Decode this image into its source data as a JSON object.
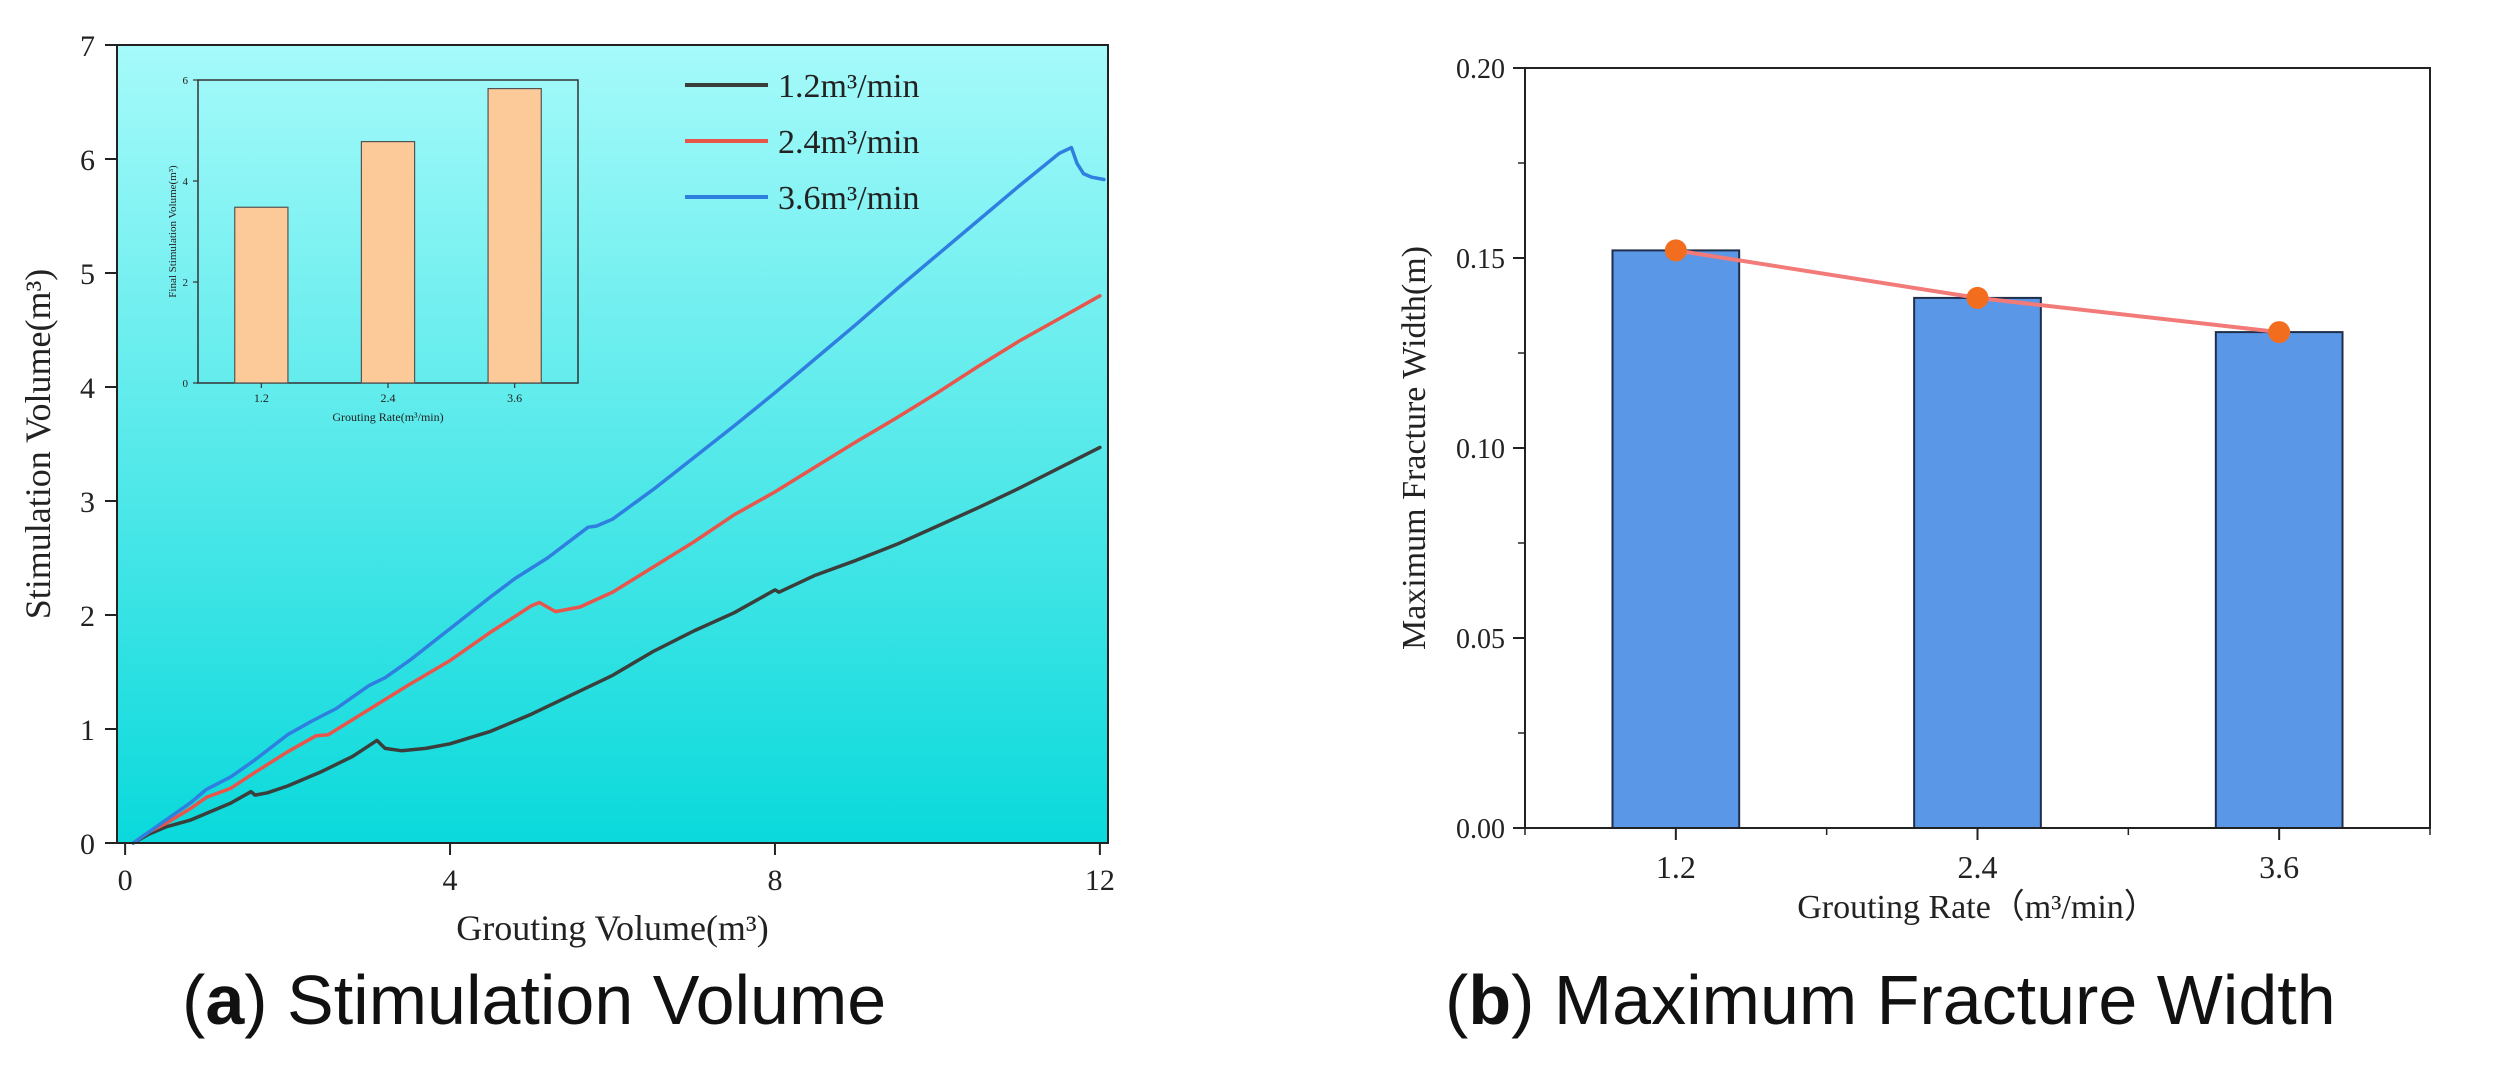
{
  "chart_data": [
    {
      "panel": "a",
      "type": "line",
      "caption_letter": "a",
      "caption_text": "Stimulation Volume",
      "xlabel": "Grouting Volume(m³)",
      "ylabel": "Stimulation Volume(m³)",
      "xlim": [
        -0.1,
        12.1
      ],
      "ylim": [
        0,
        7
      ],
      "xticks": [
        0,
        4,
        8,
        12
      ],
      "yticks": [
        0,
        1,
        2,
        3,
        4,
        5,
        6,
        7
      ],
      "xtick_labels": [
        "0",
        "4",
        "8",
        "12"
      ],
      "ytick_labels": [
        "0",
        "1",
        "2",
        "3",
        "4",
        "5",
        "6",
        "7"
      ],
      "background": "gradient cyan",
      "legend_position": "top-right",
      "series": [
        {
          "name": "1.2m³/min",
          "color": "#3a3f3c",
          "x": [
            0.1,
            0.3,
            0.5,
            0.8,
            1.0,
            1.3,
            1.55,
            1.6,
            1.75,
            2.0,
            2.4,
            2.8,
            3.1,
            3.2,
            3.4,
            3.7,
            4.0,
            4.5,
            5.0,
            5.5,
            6.0,
            6.5,
            7.0,
            7.5,
            8.0,
            8.05,
            8.5,
            9.0,
            9.5,
            10.0,
            10.5,
            11.0,
            11.5,
            12.0
          ],
          "y": [
            0.0,
            0.08,
            0.14,
            0.2,
            0.26,
            0.35,
            0.45,
            0.42,
            0.44,
            0.5,
            0.62,
            0.76,
            0.9,
            0.83,
            0.81,
            0.83,
            0.87,
            0.98,
            1.13,
            1.3,
            1.47,
            1.68,
            1.86,
            2.02,
            2.22,
            2.2,
            2.35,
            2.48,
            2.62,
            2.78,
            2.94,
            3.11,
            3.29,
            3.47
          ]
        },
        {
          "name": "2.4m³/min",
          "color": "#e8554b",
          "x": [
            0.1,
            0.3,
            0.5,
            0.8,
            1.0,
            1.3,
            1.6,
            2.0,
            2.35,
            2.5,
            3.0,
            3.5,
            4.0,
            4.5,
            5.0,
            5.1,
            5.3,
            5.6,
            6.0,
            6.5,
            7.0,
            7.5,
            8.0,
            8.5,
            9.0,
            9.5,
            10.0,
            10.5,
            11.0,
            11.5,
            12.0
          ],
          "y": [
            0.0,
            0.1,
            0.17,
            0.3,
            0.4,
            0.48,
            0.62,
            0.8,
            0.94,
            0.95,
            1.17,
            1.39,
            1.6,
            1.85,
            2.08,
            2.11,
            2.03,
            2.07,
            2.2,
            2.42,
            2.64,
            2.88,
            3.08,
            3.3,
            3.52,
            3.73,
            3.95,
            4.18,
            4.4,
            4.6,
            4.8
          ]
        },
        {
          "name": "3.6m³/min",
          "color": "#2f7fe0",
          "x": [
            0.1,
            0.3,
            0.5,
            0.8,
            1.0,
            1.3,
            1.6,
            2.0,
            2.3,
            2.6,
            3.0,
            3.2,
            3.5,
            4.0,
            4.5,
            4.8,
            5.2,
            5.7,
            5.8,
            6.0,
            6.5,
            7.0,
            7.5,
            8.0,
            8.5,
            9.0,
            9.5,
            10.0,
            10.5,
            11.0,
            11.5,
            11.65,
            11.72,
            11.8,
            11.9,
            12.05
          ],
          "y": [
            0.0,
            0.1,
            0.2,
            0.35,
            0.47,
            0.58,
            0.73,
            0.95,
            1.07,
            1.18,
            1.38,
            1.45,
            1.6,
            1.88,
            2.16,
            2.32,
            2.5,
            2.77,
            2.78,
            2.84,
            3.1,
            3.38,
            3.66,
            3.95,
            4.25,
            4.55,
            4.86,
            5.16,
            5.46,
            5.76,
            6.05,
            6.1,
            5.96,
            5.87,
            5.84,
            5.82
          ]
        }
      ],
      "inset": {
        "type": "bar",
        "categories": [
          "1.2",
          "2.4",
          "3.6"
        ],
        "values": [
          3.48,
          4.78,
          5.83
        ],
        "bar_color": "#fcc999",
        "ylim": [
          0,
          6
        ],
        "yticks": [
          "0",
          "2",
          "4",
          "6"
        ],
        "xlabel": "Grouting Rate(m³/min)",
        "ylabel": "Final Stimulation Volume(m³)"
      }
    },
    {
      "panel": "b",
      "type": "bar",
      "caption_letter": "b",
      "caption_text": "Maximum Fracture Width",
      "categories": [
        "1.2",
        "2.4",
        "3.6"
      ],
      "values": [
        0.152,
        0.1395,
        0.1305
      ],
      "line_values": [
        0.152,
        0.1395,
        0.1305
      ],
      "bar_color": "#5b97e7",
      "line_color": "#f27a78",
      "marker_color": "#f36d1e",
      "xlabel": "Grouting Rate（m³/min）",
      "ylabel": "Maximum Fracture Width(m)",
      "ylim": [
        0,
        0.2
      ],
      "yticks": [
        0,
        0.05,
        0.1,
        0.15,
        0.2
      ],
      "ytick_labels": [
        "0.00",
        "0.05",
        "0.10",
        "0.15",
        "0.20"
      ]
    }
  ]
}
